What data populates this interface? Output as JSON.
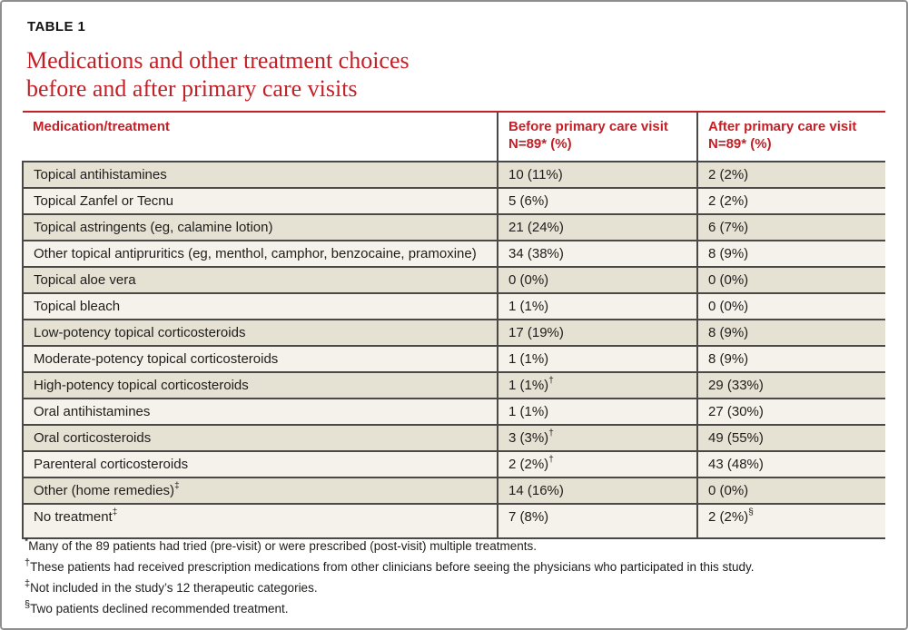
{
  "page": {
    "kicker": "TABLE 1",
    "title_line1": "Medications and other treatment choices",
    "title_line2": "before and after primary care visits"
  },
  "colors": {
    "accent_red": "#c32027",
    "row_dark_bg": "#e5e1d3",
    "row_light_bg": "#f4f2ea",
    "border_dark": "#4a4945",
    "frame_border": "#8f8f8f"
  },
  "table": {
    "columns": [
      {
        "label": "Medication/treatment",
        "sub": ""
      },
      {
        "label": "Before primary care visit",
        "sub": "N=89* (%)"
      },
      {
        "label": "After primary care visit",
        "sub": "N=89* (%)"
      }
    ],
    "rows": [
      {
        "name": "Topical antihistamines",
        "name_sup": "",
        "before": "10 (11%)",
        "before_sup": "",
        "after": "2 (2%)",
        "after_sup": ""
      },
      {
        "name": "Topical Zanfel or Tecnu",
        "name_sup": "",
        "before": "5 (6%)",
        "before_sup": "",
        "after": "2 (2%)",
        "after_sup": ""
      },
      {
        "name": "Topical astringents (eg, calamine lotion)",
        "name_sup": "",
        "before": "21 (24%)",
        "before_sup": "",
        "after": "6 (7%)",
        "after_sup": ""
      },
      {
        "name": "Other topical antipruritics (eg, menthol, camphor, benzocaine, pramoxine)",
        "name_sup": "",
        "before": "34 (38%)",
        "before_sup": "",
        "after": "8 (9%)",
        "after_sup": ""
      },
      {
        "name": "Topical aloe vera",
        "name_sup": "",
        "before": "0 (0%)",
        "before_sup": "",
        "after": "0 (0%)",
        "after_sup": ""
      },
      {
        "name": "Topical bleach",
        "name_sup": "",
        "before": "1 (1%)",
        "before_sup": "",
        "after": "0 (0%)",
        "after_sup": ""
      },
      {
        "name": "Low-potency topical corticosteroids",
        "name_sup": "",
        "before": "17 (19%)",
        "before_sup": "",
        "after": "8 (9%)",
        "after_sup": ""
      },
      {
        "name": "Moderate-potency topical corticosteroids",
        "name_sup": "",
        "before": "1 (1%)",
        "before_sup": "",
        "after": "8 (9%)",
        "after_sup": ""
      },
      {
        "name": "High-potency topical corticosteroids",
        "name_sup": "",
        "before": "1 (1%)",
        "before_sup": "†",
        "after": "29 (33%)",
        "after_sup": ""
      },
      {
        "name": "Oral antihistamines",
        "name_sup": "",
        "before": "1 (1%)",
        "before_sup": "",
        "after": "27 (30%)",
        "after_sup": ""
      },
      {
        "name": "Oral corticosteroids",
        "name_sup": "",
        "before": "3 (3%)",
        "before_sup": "†",
        "after": "49 (55%)",
        "after_sup": ""
      },
      {
        "name": "Parenteral corticosteroids",
        "name_sup": "",
        "before": "2 (2%)",
        "before_sup": "†",
        "after": "43 (48%)",
        "after_sup": ""
      },
      {
        "name": "Other (home remedies)",
        "name_sup": "‡",
        "before": "14 (16%)",
        "before_sup": "",
        "after": "0 (0%)",
        "after_sup": ""
      },
      {
        "name": "No treatment",
        "name_sup": "‡",
        "before": "7 (8%)",
        "before_sup": "",
        "after": "2 (2%)",
        "after_sup": "§"
      }
    ]
  },
  "footnotes": [
    {
      "symbol": "*",
      "text": "Many of the 89 patients had tried (pre-visit) or were prescribed (post-visit) multiple treatments."
    },
    {
      "symbol": "†",
      "text": "These patients had received prescription medications from other clinicians before seeing the physicians who participated in this study."
    },
    {
      "symbol": "‡",
      "text": "Not included in the study’s 12 therapeutic categories."
    },
    {
      "symbol": "§",
      "text": "Two patients declined recommended treatment."
    }
  ]
}
